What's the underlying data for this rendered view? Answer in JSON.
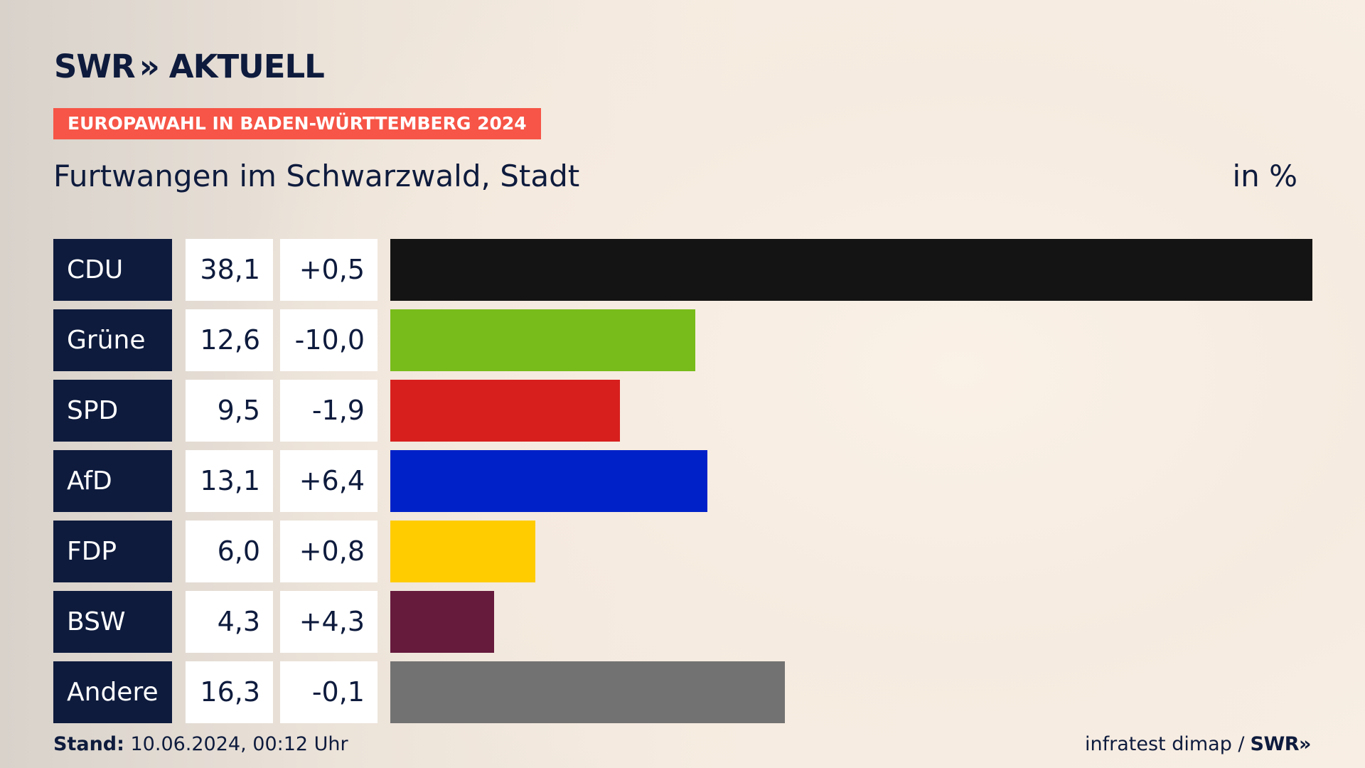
{
  "header": {
    "logo_brand": "SWR",
    "logo_chevrons": "»",
    "logo_title": "AKTUELL",
    "tag": "EUROPAWAHL IN BADEN-WÜRTTEMBERG 2024",
    "place": "Furtwangen im Schwarzwald, Stadt",
    "unit": "in %"
  },
  "chart_data": {
    "type": "bar",
    "orientation": "horizontal",
    "title": "Furtwangen im Schwarzwald, Stadt",
    "unit_label": "in %",
    "xlim": [
      0,
      38.1
    ],
    "categories": [
      "CDU",
      "Grüne",
      "SPD",
      "AfD",
      "FDP",
      "BSW",
      "Andere"
    ],
    "values": [
      38.1,
      12.6,
      9.5,
      13.1,
      6.0,
      4.3,
      16.3
    ],
    "value_labels": [
      "38,1",
      "12,6",
      "9,5",
      "13,1",
      "6,0",
      "4,3",
      "16,3"
    ],
    "diff_labels": [
      "+0,5",
      "-10,0",
      "-1,9",
      "+6,4",
      "+0,8",
      "+4,3",
      "-0,1"
    ],
    "diffs": [
      0.5,
      -10.0,
      -1.9,
      6.4,
      0.8,
      4.3,
      -0.1
    ],
    "colors": [
      "#141414",
      "#78bc1b",
      "#d71f1d",
      "#0021c8",
      "#ffcc00",
      "#661a3c",
      "#727272"
    ]
  },
  "footer": {
    "stand_label": "Stand:",
    "stand_value": " 10.06.2024, 00:12 Uhr",
    "source": "infratest dimap /",
    "brand": "SWR»"
  }
}
